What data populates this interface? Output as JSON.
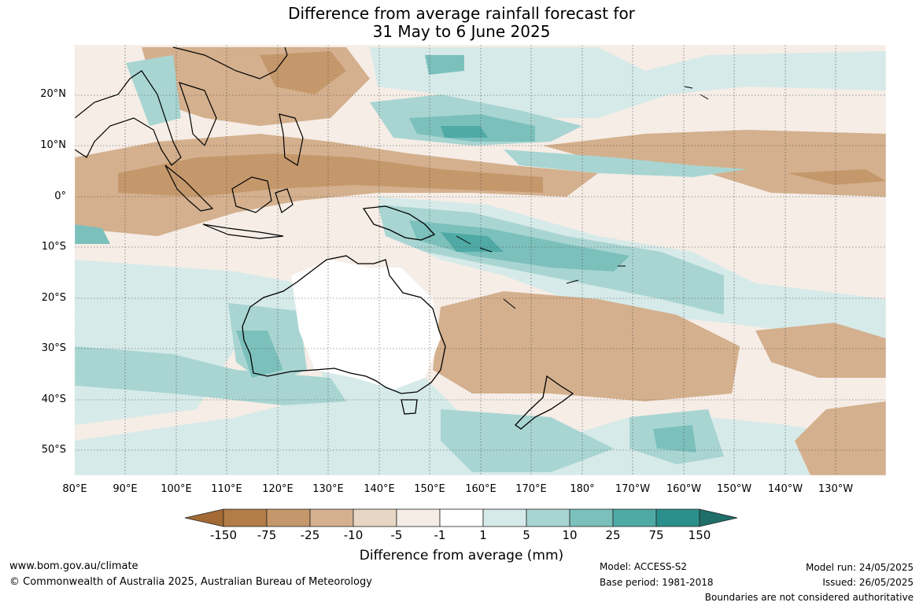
{
  "title": {
    "line1": "Difference from average rainfall forecast for",
    "line2": "31 May to 6 June 2025"
  },
  "map": {
    "lat_labels": [
      "20°N",
      "10°N",
      "0°",
      "10°S",
      "20°S",
      "30°S",
      "40°S",
      "50°S"
    ],
    "lon_labels": [
      "80°E",
      "90°E",
      "100°E",
      "110°E",
      "120°E",
      "130°E",
      "140°E",
      "150°E",
      "160°E",
      "170°E",
      "180°",
      "170°W",
      "160°W",
      "150°W",
      "140°W",
      "130°W"
    ]
  },
  "legend": {
    "title": "Difference from average (mm)",
    "ticks": [
      "-150",
      "-75",
      "-25",
      "-10",
      "-5",
      "-1",
      "1",
      "5",
      "10",
      "25",
      "75",
      "150"
    ],
    "colors": [
      "#a36a35",
      "#b37d47",
      "#c5986c",
      "#d4b08e",
      "#e8d6c4",
      "#f5ede6",
      "#ffffff",
      "#d6eae9",
      "#a8d5d2",
      "#7cc0bc",
      "#4faaa6",
      "#2b8f8b",
      "#1f6e6a"
    ]
  },
  "footer": {
    "website": "www.bom.gov.au/climate",
    "copyright": "© Commonwealth of Australia 2025, Australian Bureau of Meteorology",
    "model": "Model: ACCESS-S2",
    "base_period": "Base period: 1981-2018",
    "model_run": "Model run: 24/05/2025",
    "issued": "Issued: 26/05/2025",
    "disclaimer": "Boundaries are not considered authoritative"
  }
}
